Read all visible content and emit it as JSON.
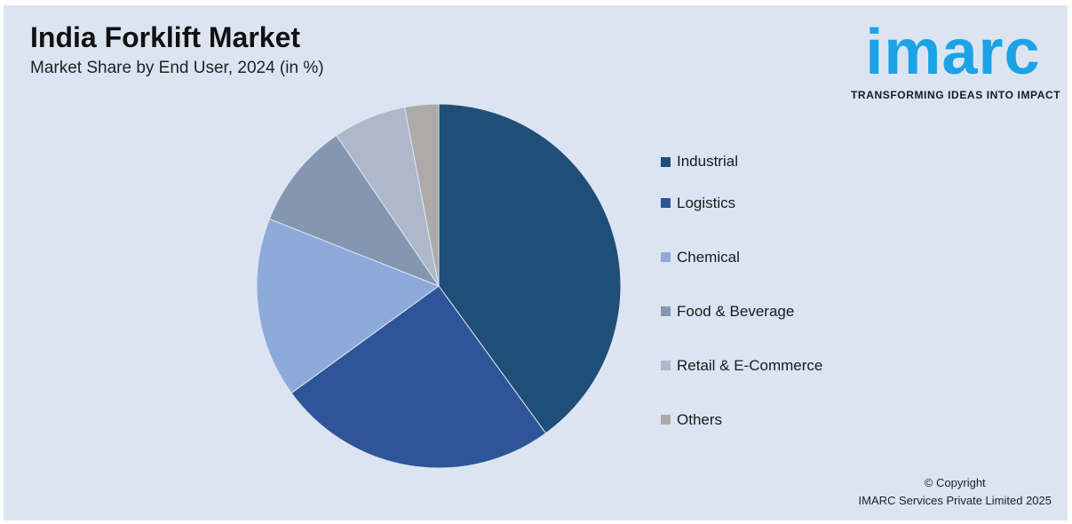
{
  "header": {
    "title": "India Forklift Market",
    "subtitle": "Market Share by End User, 2024 (in %)"
  },
  "logo": {
    "wordmark": "imarc",
    "tagline": "TRANSFORMING IDEAS INTO IMPACT",
    "color": "#1ba3e6"
  },
  "chart_data": {
    "type": "pie",
    "title": "India Forklift Market",
    "subtitle": "Market Share by End User, 2024 (in %)",
    "legend_position": "right",
    "categories": [
      "Industrial",
      "Logistics",
      "Chemical",
      "Food & Beverage",
      "Retail & E-Commerce",
      "Others"
    ],
    "values": [
      40,
      25,
      16,
      9.5,
      6.5,
      3
    ],
    "colors": [
      "#1f4e79",
      "#2e5597",
      "#8eaadb",
      "#8497b0",
      "#adb9ca",
      "#aeaaaa"
    ]
  },
  "footer": {
    "copyright_line1": "© Copyright",
    "copyright_line2": "IMARC Services Private Limited 2025"
  }
}
